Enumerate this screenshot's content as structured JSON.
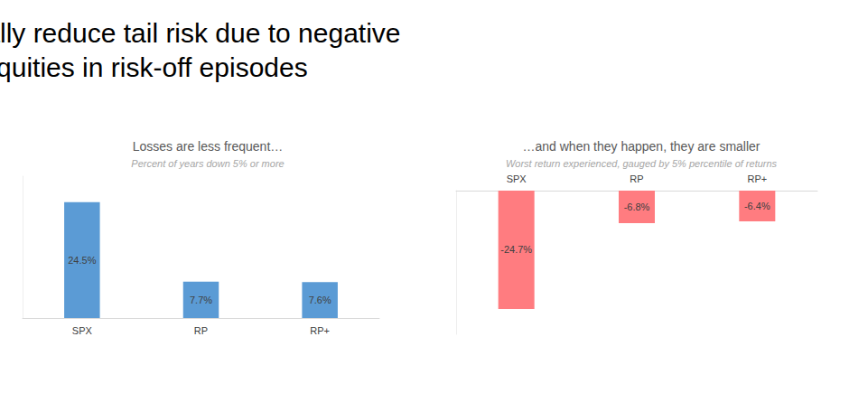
{
  "title": "Risk parity can substantially reduce tail risk due to negative correlation with equities in risk-off episodes",
  "chart_data": [
    {
      "type": "bar",
      "title": "Losses are less frequent…",
      "subtitle": "Percent of years down 5% or more",
      "categories": [
        "SPX",
        "RP",
        "RP+"
      ],
      "values": [
        24.5,
        7.7,
        7.6
      ],
      "value_labels": [
        "24.5%",
        "7.7%",
        "7.6%"
      ],
      "color": "#5b9bd5",
      "ylim": [
        0,
        30
      ],
      "data_labels": true,
      "tick_labels": "x"
    },
    {
      "type": "bar",
      "title": "…and when they happen, they are smaller",
      "subtitle": "Worst return experienced, gauged by 5% percentile of returns",
      "categories": [
        "SPX",
        "RP",
        "RP+"
      ],
      "values": [
        -24.7,
        -6.8,
        -6.4
      ],
      "value_labels": [
        "-24.7%",
        "-6.8%",
        "-6.4%"
      ],
      "color": "#ff7c80",
      "ylim": [
        -30,
        0
      ],
      "data_labels": true,
      "tick_labels": "x"
    }
  ]
}
